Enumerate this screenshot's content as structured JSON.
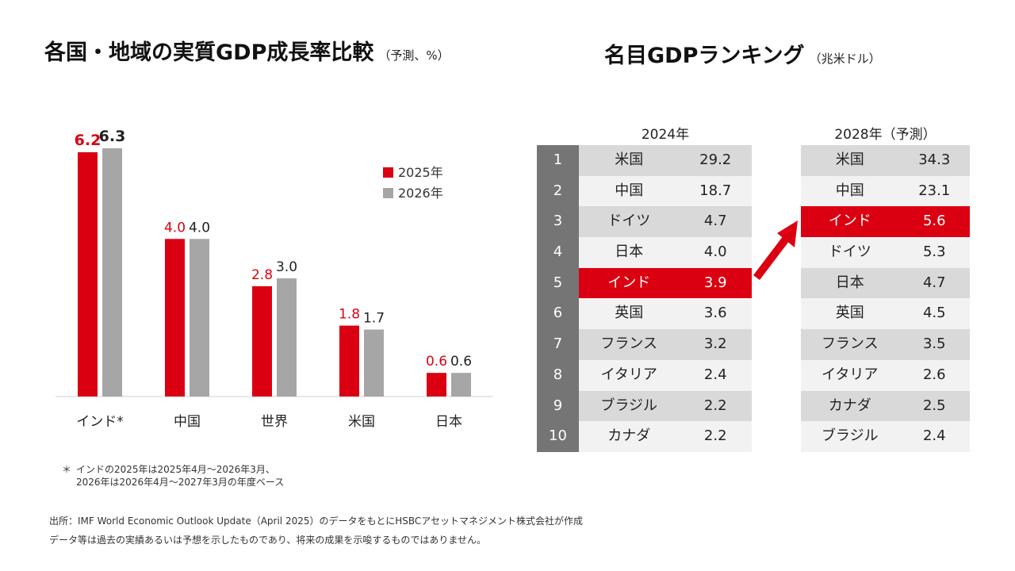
{
  "titles": {
    "left_main": "各国・地域の実質GDP成長率比較",
    "left_sub": "（予測、%）",
    "right_main": "名目GDPランキング",
    "right_sub": "（兆米ドル）"
  },
  "colors": {
    "red": "#db0011",
    "grey": "#a6a6a6",
    "rank_bg": "#757575",
    "row_light": "#f2f2f2",
    "row_dark": "#d9d9d9"
  },
  "chart_data": {
    "type": "bar",
    "title": "各国・地域の実質GDP成長率比較",
    "categories": [
      "インド*",
      "中国",
      "世界",
      "米国",
      "日本"
    ],
    "series": [
      {
        "name": "2025年",
        "values": [
          6.2,
          4.0,
          2.8,
          1.8,
          0.6
        ],
        "color": "#db0011"
      },
      {
        "name": "2026年",
        "values": [
          6.3,
          4.0,
          3.0,
          1.7,
          0.6
        ],
        "color": "#a6a6a6"
      }
    ],
    "ylim": [
      0,
      6.3
    ],
    "xlabel": "",
    "ylabel": "",
    "legend": "top-right",
    "grid": false
  },
  "footnote": {
    "mark": "＊",
    "line1": "インドの2025年は2025年4月～2026年3月、",
    "line2": "2026年は2026年4月～2027年3月の年度ベース"
  },
  "sources": {
    "line1": "出所：IMF World Economic Outlook Update（April 2025）のデータをもとにHSBCアセットマネジメント株式会社が作成",
    "line2": "データ等は過去の実績あるいは予想を示したものであり、将来の成果を示唆するものではありません。"
  },
  "ranking": {
    "ranks": [
      "1",
      "2",
      "3",
      "4",
      "5",
      "6",
      "7",
      "8",
      "9",
      "10"
    ],
    "y2024": {
      "header": "2024年",
      "rows": [
        {
          "country": "米国",
          "value": "29.2"
        },
        {
          "country": "中国",
          "value": "18.7"
        },
        {
          "country": "ドイツ",
          "value": "4.7"
        },
        {
          "country": "日本",
          "value": "4.0"
        },
        {
          "country": "インド",
          "value": "3.9",
          "highlight": true
        },
        {
          "country": "英国",
          "value": "3.6"
        },
        {
          "country": "フランス",
          "value": "3.2"
        },
        {
          "country": "イタリア",
          "value": "2.4"
        },
        {
          "country": "ブラジル",
          "value": "2.2"
        },
        {
          "country": "カナダ",
          "value": "2.2"
        }
      ]
    },
    "y2028": {
      "header": "2028年（予測）",
      "rows": [
        {
          "country": "米国",
          "value": "34.3"
        },
        {
          "country": "中国",
          "value": "23.1"
        },
        {
          "country": "インド",
          "value": "5.6",
          "highlight": true
        },
        {
          "country": "ドイツ",
          "value": "5.3"
        },
        {
          "country": "日本",
          "value": "4.7"
        },
        {
          "country": "英国",
          "value": "4.5"
        },
        {
          "country": "フランス",
          "value": "3.5"
        },
        {
          "country": "イタリア",
          "value": "2.6"
        },
        {
          "country": "カナダ",
          "value": "2.5"
        },
        {
          "country": "ブラジル",
          "value": "2.4"
        }
      ]
    }
  }
}
